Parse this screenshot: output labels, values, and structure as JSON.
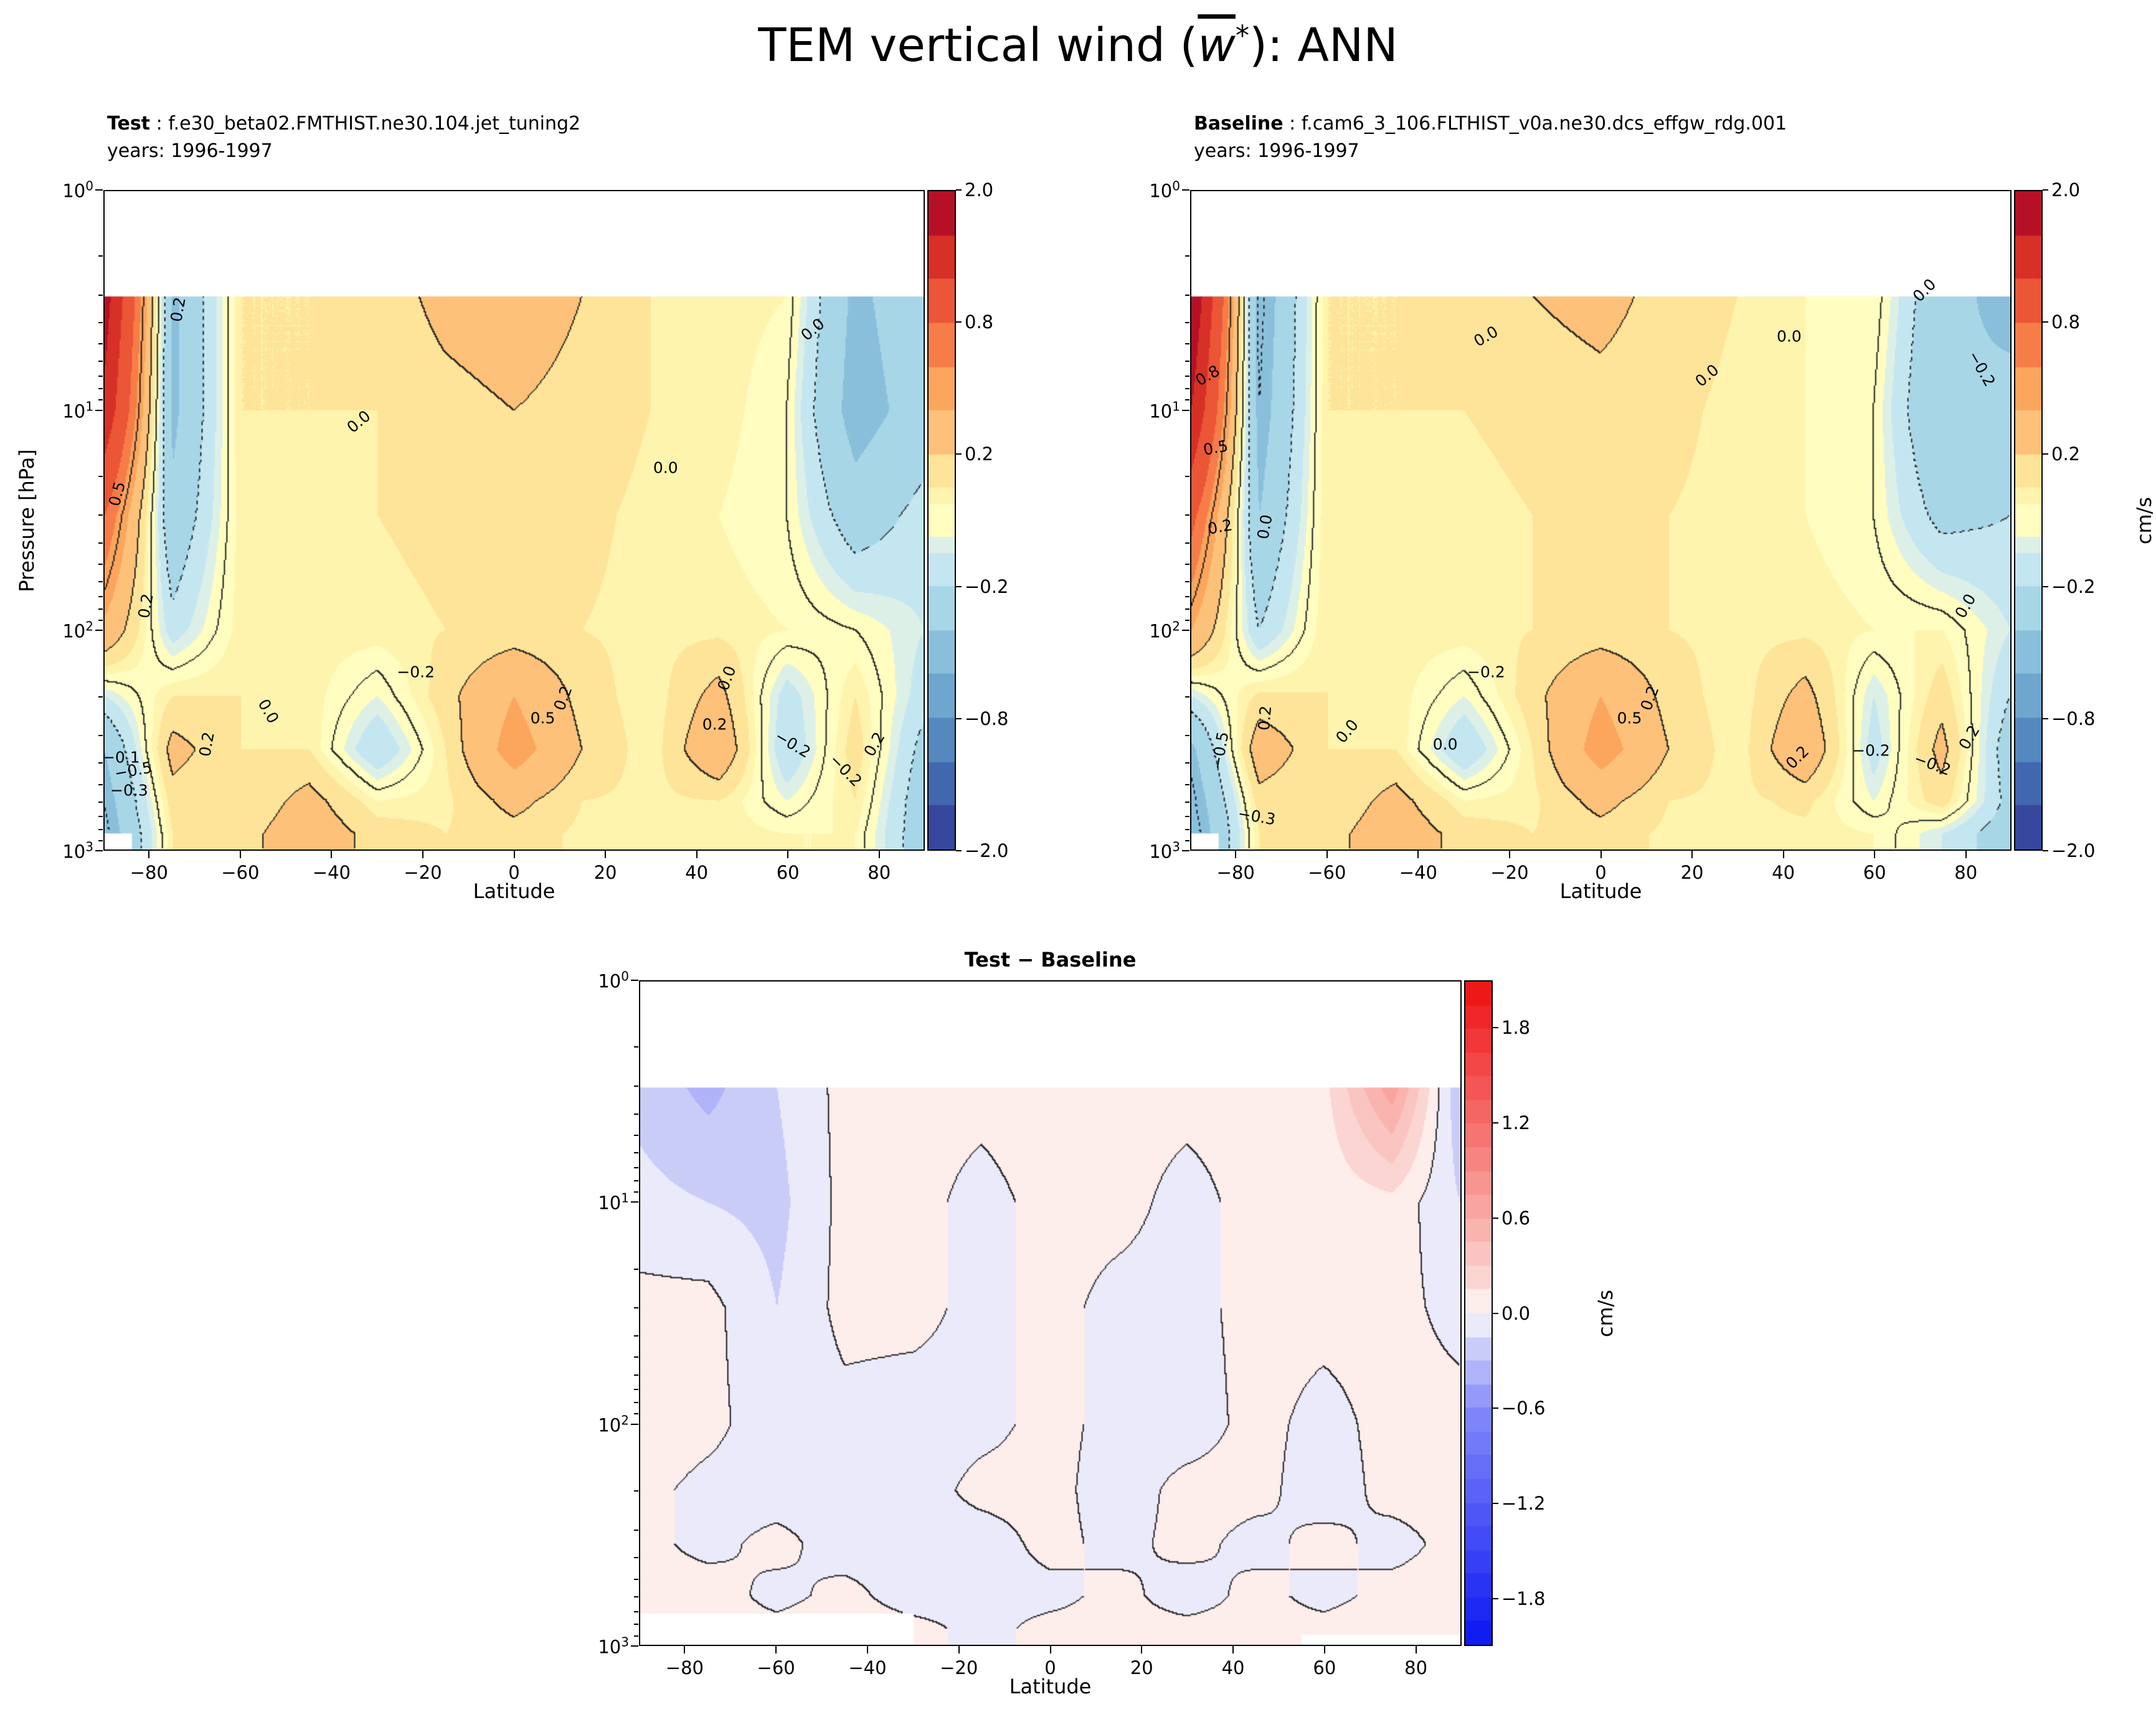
{
  "figure": {
    "title_prefix": "TEM vertical wind (",
    "title_var": "w",
    "title_sup": "*",
    "title_suffix": "): ANN"
  },
  "colormaps": {
    "RdYlBu_r": [
      [
        0.0,
        "#313695"
      ],
      [
        0.125,
        "#4575b4"
      ],
      [
        0.25,
        "#74add1"
      ],
      [
        0.375,
        "#abd9e9"
      ],
      [
        0.45,
        "#d1ecf4"
      ],
      [
        0.5,
        "#fffdc0"
      ],
      [
        0.56,
        "#fdeea2"
      ],
      [
        0.625,
        "#fdc47d"
      ],
      [
        0.7,
        "#fca55d"
      ],
      [
        0.8,
        "#f4693e"
      ],
      [
        0.9,
        "#d73027"
      ],
      [
        1.0,
        "#a50026"
      ]
    ],
    "bwr_soft": [
      [
        0.0,
        "#0b16f0"
      ],
      [
        0.35,
        "#8289fb"
      ],
      [
        0.47,
        "#dcdcf7"
      ],
      [
        0.5,
        "#ffffff"
      ],
      [
        0.53,
        "#fbe0dd"
      ],
      [
        0.65,
        "#f9a9a4"
      ],
      [
        1.0,
        "#ee1012"
      ]
    ]
  },
  "chart_data": [
    {
      "id": "test",
      "type": "heatmap",
      "subtype": "filled_contour",
      "heading_bold": "Test",
      "heading_rest": " : f.e30_beta02.FMTHIST.ne30.104.jet_tuning2",
      "heading_years": "years: 1996-1997",
      "xlabel": "Latitude",
      "ylabel": "Pressure [hPa]",
      "xlim": [
        -90,
        90
      ],
      "ylim_hpa": [
        1,
        1000
      ],
      "y_scale": "log",
      "xticks": [
        -80,
        -60,
        -40,
        -20,
        0,
        20,
        40,
        60,
        80
      ],
      "ytick_base": "10",
      "ytick_exponents": [
        0,
        1,
        2,
        3
      ],
      "top_data_boundary_hpa": 3,
      "surface_mask": [
        {
          "lat_range": [
            -90,
            -84
          ],
          "below_hpa": 840
        }
      ],
      "colormap": "RdYlBu_r",
      "norm_anchors": [
        [
          -2,
          0
        ],
        [
          -0.8,
          0.2
        ],
        [
          -0.2,
          0.4
        ],
        [
          0.2,
          0.6
        ],
        [
          0.8,
          0.8
        ],
        [
          2,
          1
        ]
      ],
      "fill_levels": [
        -2,
        -1.6,
        -1.2,
        -0.8,
        -0.6,
        -0.4,
        -0.2,
        -0.1,
        -0.05,
        0.05,
        0.1,
        0.2,
        0.4,
        0.6,
        0.8,
        1.2,
        1.6,
        2
      ],
      "contour_line_levels": [
        -0.5,
        -0.2,
        0,
        0.2,
        0.5
      ],
      "colorbar_tick_labels": [
        "2.0",
        "0.8",
        "0.2",
        "−0.2",
        "−0.8",
        "−2.0"
      ],
      "x_lats": [
        -90,
        -75,
        -60,
        -45,
        -30,
        -15,
        0,
        15,
        30,
        45,
        60,
        75,
        90
      ],
      "y_pressures_hpa": [
        3,
        10,
        30,
        100,
        200,
        350,
        600,
        850
      ],
      "values_cms": [
        [
          1.8,
          -0.45,
          0.1,
          0.1,
          0.12,
          0.25,
          0.3,
          0.2,
          0.1,
          0.08,
          0.05,
          -0.45,
          -0.25
        ],
        [
          1.5,
          -0.45,
          0.1,
          0.1,
          0.1,
          0.15,
          0.2,
          0.15,
          0.1,
          0.08,
          0.0,
          -0.5,
          -0.3
        ],
        [
          0.8,
          -0.35,
          0.08,
          0.08,
          0.1,
          0.12,
          0.15,
          0.12,
          0.08,
          0.05,
          0.0,
          -0.3,
          -0.15
        ],
        [
          0.35,
          -0.15,
          0.08,
          0.08,
          0.08,
          0.1,
          0.12,
          0.1,
          0.08,
          0.08,
          0.05,
          0.0,
          -0.1
        ],
        [
          -0.1,
          0.1,
          0.1,
          0.08,
          -0.05,
          0.15,
          0.4,
          0.15,
          0.05,
          0.25,
          -0.15,
          0.1,
          -0.15
        ],
        [
          -0.4,
          0.25,
          0.1,
          0.1,
          -0.2,
          0.1,
          0.5,
          0.2,
          0.05,
          0.35,
          -0.2,
          0.15,
          -0.25
        ],
        [
          -0.5,
          0.15,
          0.1,
          0.25,
          0.05,
          0.08,
          0.25,
          0.1,
          0.08,
          0.1,
          -0.05,
          0.1,
          -0.3
        ],
        [
          -0.55,
          0.1,
          0.15,
          0.3,
          0.15,
          0.1,
          0.15,
          0.08,
          0.08,
          0.08,
          0.05,
          0.05,
          -0.3
        ]
      ],
      "annotations": [
        {
          "t": "0.2",
          "x": 9,
          "y": 18,
          "r": -80
        },
        {
          "t": "0.5",
          "x": 1.5,
          "y": 46,
          "r": -75
        },
        {
          "t": "0.2",
          "x": 5,
          "y": 63,
          "r": -80
        },
        {
          "t": "0.0",
          "x": 31,
          "y": 35,
          "r": -40
        },
        {
          "t": "0.0",
          "x": 68.5,
          "y": 42,
          "r": 0
        },
        {
          "t": "0.0",
          "x": 86.5,
          "y": 21,
          "r": -40
        },
        {
          "t": "−0.2",
          "x": 38,
          "y": 73,
          "r": 0
        },
        {
          "t": "0.5",
          "x": 53.5,
          "y": 80,
          "r": 0
        },
        {
          "t": "0.2",
          "x": 56,
          "y": 77,
          "r": -70
        },
        {
          "t": "0.0",
          "x": 20,
          "y": 79,
          "r": 60
        },
        {
          "t": "0.2",
          "x": 12.5,
          "y": 84,
          "r": -80
        },
        {
          "t": "0.2",
          "x": 74.5,
          "y": 81,
          "r": 0
        },
        {
          "t": "0.0",
          "x": 76,
          "y": 74,
          "r": -70
        },
        {
          "t": "−0.2",
          "x": 84,
          "y": 84,
          "r": 30
        },
        {
          "t": "0.2",
          "x": 94,
          "y": 84,
          "r": -60
        },
        {
          "t": "−0.2",
          "x": 90.5,
          "y": 88,
          "r": 45
        },
        {
          "t": "−0.5",
          "x": 3.5,
          "y": 88,
          "r": -10
        },
        {
          "t": "−0.3",
          "x": 3,
          "y": 91,
          "r": 0
        },
        {
          "t": "−0.1",
          "x": 2,
          "y": 86,
          "r": 0
        }
      ]
    },
    {
      "id": "baseline",
      "type": "heatmap",
      "subtype": "filled_contour",
      "heading_bold": "Baseline",
      "heading_rest": " : f.cam6_3_106.FLTHIST_v0a.ne30.dcs_effgw_rdg.001",
      "heading_years": "years: 1996-1997",
      "xlabel": "Latitude",
      "colorbar_unit": "cm/s",
      "xlim": [
        -90,
        90
      ],
      "ylim_hpa": [
        1,
        1000
      ],
      "y_scale": "log",
      "xticks": [
        -80,
        -60,
        -40,
        -20,
        0,
        20,
        40,
        60,
        80
      ],
      "ytick_base": "10",
      "ytick_exponents": [
        0,
        1,
        2,
        3
      ],
      "top_data_boundary_hpa": 3,
      "surface_mask": [
        {
          "lat_range": [
            -90,
            -84
          ],
          "below_hpa": 840
        }
      ],
      "colormap": "RdYlBu_r",
      "norm_anchors": [
        [
          -2,
          0
        ],
        [
          -0.8,
          0.2
        ],
        [
          -0.2,
          0.4
        ],
        [
          0.2,
          0.6
        ],
        [
          0.8,
          0.8
        ],
        [
          2,
          1
        ]
      ],
      "fill_levels": [
        -2,
        -1.6,
        -1.2,
        -0.8,
        -0.6,
        -0.4,
        -0.2,
        -0.1,
        -0.05,
        0.05,
        0.1,
        0.2,
        0.4,
        0.6,
        0.8,
        1.2,
        1.6,
        2
      ],
      "contour_line_levels": [
        -0.5,
        -0.2,
        0,
        0.2,
        0.5
      ],
      "colorbar_tick_labels": [
        "2.0",
        "0.8",
        "0.2",
        "−0.2",
        "−0.8",
        "−2.0"
      ],
      "x_lats": [
        -90,
        -75,
        -60,
        -45,
        -30,
        -15,
        0,
        15,
        30,
        45,
        60,
        75,
        90
      ],
      "y_pressures_hpa": [
        3,
        10,
        30,
        100,
        200,
        350,
        600,
        850
      ],
      "values_cms": [
        [
          2.0,
          -0.55,
          0.1,
          0.1,
          0.12,
          0.2,
          0.25,
          0.15,
          0.1,
          0.05,
          0.05,
          -0.35,
          -0.45
        ],
        [
          1.6,
          -0.5,
          0.1,
          0.1,
          0.1,
          0.12,
          0.15,
          0.12,
          0.08,
          0.05,
          0.0,
          -0.4,
          -0.35
        ],
        [
          0.9,
          -0.4,
          0.1,
          0.08,
          0.08,
          0.1,
          0.12,
          0.1,
          0.08,
          0.05,
          0.0,
          -0.25,
          -0.2
        ],
        [
          0.4,
          -0.2,
          0.1,
          0.08,
          0.08,
          0.1,
          0.12,
          0.1,
          0.08,
          0.08,
          0.05,
          0.05,
          -0.1
        ],
        [
          -0.1,
          0.12,
          0.1,
          0.08,
          -0.05,
          0.15,
          0.4,
          0.15,
          0.05,
          0.25,
          -0.1,
          0.15,
          -0.2
        ],
        [
          -0.45,
          0.3,
          0.1,
          0.1,
          -0.2,
          0.1,
          0.5,
          0.2,
          0.05,
          0.35,
          -0.15,
          0.25,
          -0.3
        ],
        [
          -0.55,
          0.15,
          0.1,
          0.25,
          0.05,
          0.08,
          0.25,
          0.1,
          0.08,
          0.12,
          -0.05,
          0.15,
          -0.25
        ],
        [
          -0.6,
          0.1,
          0.15,
          0.3,
          0.15,
          0.1,
          0.15,
          0.08,
          0.08,
          0.08,
          0.05,
          -0.1,
          -0.3
        ]
      ],
      "annotations": [
        {
          "t": "0.8",
          "x": 2,
          "y": 28,
          "r": -30
        },
        {
          "t": "0.5",
          "x": 3,
          "y": 39,
          "r": -10
        },
        {
          "t": "0.2",
          "x": 3.5,
          "y": 51,
          "r": -10
        },
        {
          "t": "0.0",
          "x": 9,
          "y": 51,
          "r": -80
        },
        {
          "t": "0.0",
          "x": 36,
          "y": 22,
          "r": -30
        },
        {
          "t": "0.0",
          "x": 73,
          "y": 22,
          "r": 0
        },
        {
          "t": "0.0",
          "x": 63,
          "y": 28,
          "r": -40
        },
        {
          "t": "−0.2",
          "x": 96.5,
          "y": 27,
          "r": 60
        },
        {
          "t": "0.0",
          "x": 89.5,
          "y": 15,
          "r": -45
        },
        {
          "t": "0.0",
          "x": 94.5,
          "y": 63,
          "r": -60
        },
        {
          "t": "−0.2",
          "x": 36,
          "y": 73,
          "r": 0
        },
        {
          "t": "0.0",
          "x": 19,
          "y": 82,
          "r": -50
        },
        {
          "t": "0.0",
          "x": 31,
          "y": 84,
          "r": 0
        },
        {
          "t": "0.5",
          "x": 53.5,
          "y": 80,
          "r": 0
        },
        {
          "t": "0.2",
          "x": 56,
          "y": 77,
          "r": -70
        },
        {
          "t": "0.2",
          "x": 74,
          "y": 86,
          "r": -45
        },
        {
          "t": "−0.2",
          "x": 83,
          "y": 85,
          "r": 0
        },
        {
          "t": "−0.2",
          "x": 90.5,
          "y": 87,
          "r": 20
        },
        {
          "t": "0.2",
          "x": 95,
          "y": 83,
          "r": -60
        },
        {
          "t": "−0.5",
          "x": 3.5,
          "y": 85,
          "r": -80
        },
        {
          "t": "−0.3",
          "x": 8,
          "y": 95,
          "r": 10
        },
        {
          "t": "0.2",
          "x": 9,
          "y": 80,
          "r": -85
        }
      ]
    },
    {
      "id": "diff",
      "type": "heatmap",
      "subtype": "filled_contour",
      "title": "Test − Baseline",
      "xlabel": "Latitude",
      "colorbar_unit": "cm/s",
      "xlim": [
        -90,
        90
      ],
      "ylim_hpa": [
        1,
        1000
      ],
      "y_scale": "log",
      "xticks": [
        -80,
        -60,
        -40,
        -20,
        0,
        20,
        40,
        60,
        80
      ],
      "ytick_base": "10",
      "ytick_exponents": [
        0,
        1,
        2,
        3
      ],
      "top_data_boundary_hpa": 3,
      "surface_mask": [
        {
          "lat_range": [
            -90,
            -30
          ],
          "below_hpa": 720
        },
        {
          "lat_range": [
            55,
            90
          ],
          "below_hpa": 900
        }
      ],
      "colormap": "bwr_soft",
      "vmin": -2.1,
      "vmax": 2.1,
      "fill_levels": [
        -2.1,
        -1.95,
        -1.8,
        -1.65,
        -1.5,
        -1.35,
        -1.2,
        -1.05,
        -0.9,
        -0.75,
        -0.6,
        -0.45,
        -0.3,
        -0.15,
        0,
        0.15,
        0.3,
        0.45,
        0.6,
        0.75,
        0.9,
        1.05,
        1.2,
        1.35,
        1.5,
        1.65,
        1.8,
        1.95,
        2.1
      ],
      "contour_line_levels": [
        0
      ],
      "colorbar_ticks": [
        1.8,
        1.2,
        0.6,
        0.0,
        -0.6,
        -1.2,
        -1.8
      ],
      "x_lats": [
        -90,
        -75,
        -60,
        -45,
        -30,
        -15,
        0,
        15,
        30,
        45,
        60,
        75,
        90
      ],
      "y_pressures_hpa": [
        3,
        10,
        30,
        100,
        200,
        350,
        600,
        850
      ],
      "values_cms": [
        [
          -0.2,
          -0.35,
          -0.15,
          0.05,
          0.05,
          0.05,
          0.08,
          0.05,
          0.05,
          0.05,
          0.1,
          0.7,
          -0.3
        ],
        [
          -0.1,
          -0.15,
          -0.2,
          0.05,
          0.05,
          -0.05,
          0.05,
          0.05,
          -0.05,
          0.05,
          0.05,
          0.1,
          -0.15
        ],
        [
          0.05,
          0.05,
          -0.15,
          0.05,
          0.05,
          -0.05,
          0.05,
          -0.05,
          -0.05,
          0.05,
          0.05,
          0.05,
          -0.05
        ],
        [
          0.1,
          0.05,
          -0.1,
          -0.05,
          -0.08,
          -0.05,
          0.05,
          -0.05,
          -0.08,
          0.05,
          -0.05,
          0.05,
          0.05
        ],
        [
          0.05,
          -0.05,
          -0.08,
          -0.05,
          -0.08,
          0.05,
          0.05,
          -0.08,
          0.05,
          0.05,
          -0.08,
          0.05,
          0.05
        ],
        [
          0.05,
          -0.05,
          0.05,
          -0.08,
          -0.05,
          -0.08,
          0.05,
          -0.05,
          0.05,
          -0.05,
          0.05,
          -0.05,
          0.05
        ],
        [
          0.05,
          0.08,
          -0.05,
          0.05,
          -0.08,
          -0.05,
          -0.05,
          0.05,
          -0.08,
          0.05,
          -0.05,
          0.05,
          0.05
        ],
        [
          0.08,
          0.05,
          0.05,
          0.08,
          0.05,
          -0.05,
          0.05,
          0.05,
          0.05,
          0.05,
          0.05,
          0.08,
          0.05
        ]
      ],
      "annotations": []
    }
  ]
}
